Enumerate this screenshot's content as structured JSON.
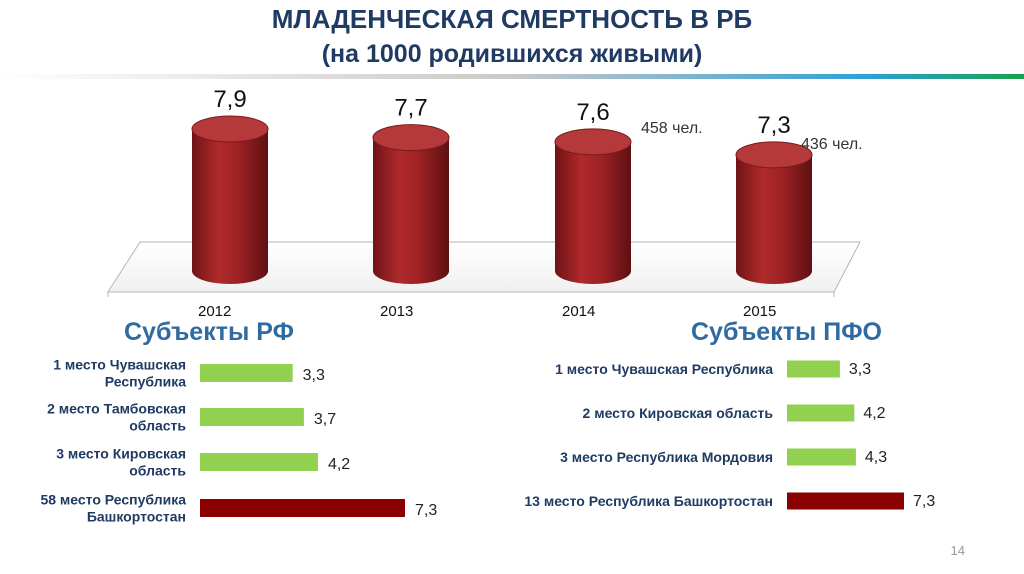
{
  "title": {
    "line1": "МЛАДЕНЧЕСКАЯ СМЕРТНОСТЬ В РБ",
    "line2": "(на 1000 родившихся живыми)"
  },
  "colors": {
    "cylinder": "#9b2224",
    "green_bar": "#92d050",
    "dark_red_bar": "#8b0000",
    "title": "#1f3b63",
    "section": "#2f6ba0"
  },
  "notes": {
    "n2014": "458 чел.",
    "n2015": "436 чел."
  },
  "left_section_title": "Субъекты РФ",
  "right_section_title": "Субъекты ПФО",
  "page_number": "14",
  "chart_data": [
    {
      "type": "bar",
      "subtype": "3d-cylinder",
      "categories": [
        "2012",
        "2013",
        "2014",
        "2015"
      ],
      "values": [
        7.9,
        7.7,
        7.6,
        7.3
      ],
      "value_labels": [
        "7,9",
        "7,7",
        "7,6",
        "7,3"
      ],
      "title": "",
      "xlabel": "",
      "ylabel": ""
    },
    {
      "type": "bar",
      "orientation": "horizontal",
      "categories": [
        [
          "1 место Чувашская",
          "Республика"
        ],
        [
          "2 место Тамбовская",
          "область"
        ],
        [
          "3 место Кировская",
          "область"
        ],
        [
          "58 место Республика",
          "Башкортостан"
        ]
      ],
      "values": [
        3.3,
        3.7,
        4.2,
        7.3
      ],
      "value_labels": [
        "3,3",
        "3,7",
        "4,2",
        "7,3"
      ],
      "highlight": [
        false,
        false,
        false,
        true
      ],
      "xlim": [
        0,
        7.3
      ]
    },
    {
      "type": "bar",
      "orientation": "horizontal",
      "categories": [
        [
          "1 место Чувашская Республика"
        ],
        [
          "2 место Кировская область"
        ],
        [
          "3 место Республика Мордовия"
        ],
        [
          "13 место Республика Башкортостан"
        ]
      ],
      "values": [
        3.3,
        4.2,
        4.3,
        7.3
      ],
      "value_labels": [
        "3,3",
        "4,2",
        "4,3",
        "7,3"
      ],
      "highlight": [
        false,
        false,
        false,
        true
      ],
      "xlim": [
        0,
        7.3
      ]
    }
  ]
}
